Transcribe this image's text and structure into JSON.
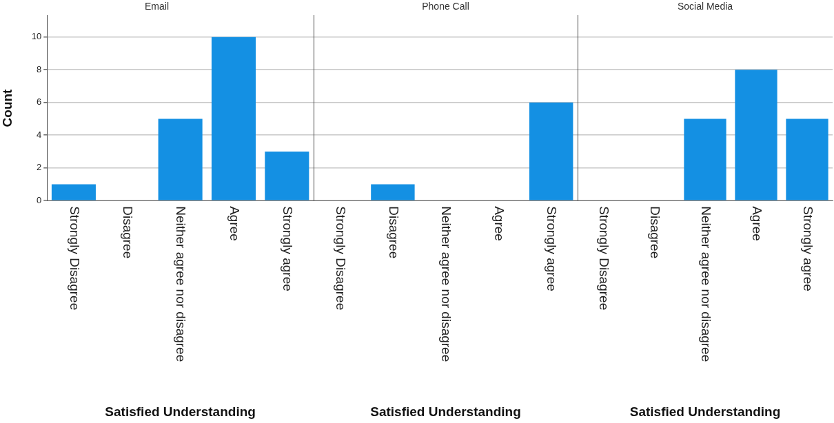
{
  "chart_data": [
    {
      "type": "bar",
      "title": "Email",
      "xlabel": "Satisfied Understanding",
      "ylabel": "Count",
      "categories": [
        "Strongly Disagree",
        "Disagree",
        "Neither agree nor disagree",
        "Agree",
        "Strongly agree"
      ],
      "values": [
        1,
        0,
        5,
        10,
        3
      ],
      "color": "#1490e3",
      "ylim": [
        0,
        11.3
      ],
      "yticks": [
        0,
        2,
        4,
        6,
        8,
        10
      ],
      "grid": "y"
    },
    {
      "type": "bar",
      "title": "Phone Call",
      "xlabel": "Satisfied Understanding",
      "categories": [
        "Strongly Disagree",
        "Disagree",
        "Neither agree nor disagree",
        "Agree",
        "Strongly agree"
      ],
      "values": [
        0,
        1,
        0,
        0,
        6
      ],
      "color": "#1490e3",
      "ylim": [
        0,
        11.3
      ],
      "yticks": [
        0,
        2,
        4,
        6,
        8,
        10
      ],
      "grid": "y",
      "tick_labels": "x"
    },
    {
      "type": "bar",
      "title": "Social Media",
      "xlabel": "Satisfied Understanding",
      "categories": [
        "Strongly Disagree",
        "Disagree",
        "Neither agree nor disagree",
        "Agree",
        "Strongly agree"
      ],
      "values": [
        0,
        0,
        5,
        8,
        5
      ],
      "color": "#1490e3",
      "ylim": [
        0,
        11.3
      ],
      "yticks": [
        0,
        2,
        4,
        6,
        8,
        10
      ],
      "grid": "y",
      "tick_labels": "x"
    }
  ]
}
